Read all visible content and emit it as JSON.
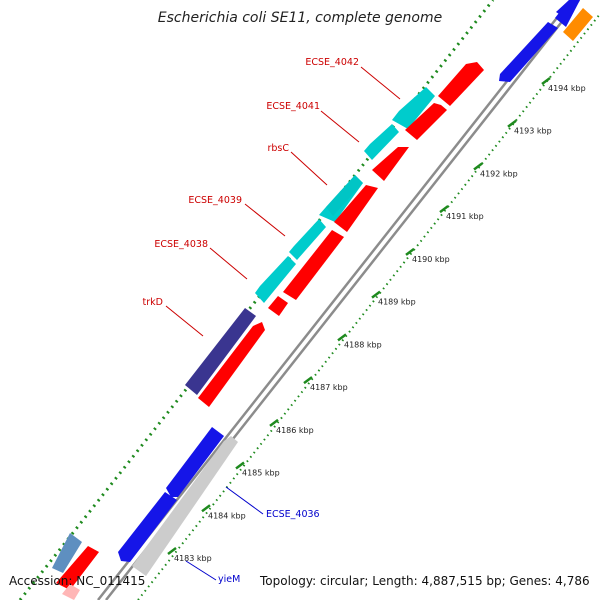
{
  "title": "Escherichia coli SE11, complete genome",
  "footer": {
    "accession": "Accession: NC_011415",
    "summary": "Topology: circular; Length: 4,887,515 bp; Genes: 4,786"
  },
  "colors": {
    "backbone": "#8c8c8c",
    "tick": "#1e8a1e",
    "label_red": "#cc0000",
    "label_blue": "#0000cc",
    "forward_cds": "#00cccc",
    "reverse_cds": "#ff0000",
    "blue_gene": "#1515e8",
    "purple_gene": "#3a3590",
    "gray_gene": "#cccccc",
    "orange_gene": "#ff8c00",
    "steelblue_gene": "#5e8fc0"
  },
  "scale": {
    "ticks": [
      {
        "kbp": 4183,
        "label": "4183 kbp"
      },
      {
        "kbp": 4184,
        "label": "4184 kbp"
      },
      {
        "kbp": 4185,
        "label": "4185 kbp"
      },
      {
        "kbp": 4186,
        "label": "4186 kbp"
      },
      {
        "kbp": 4187,
        "label": "4187 kbp"
      },
      {
        "kbp": 4188,
        "label": "4188 kbp"
      },
      {
        "kbp": 4189,
        "label": "4189 kbp"
      },
      {
        "kbp": 4190,
        "label": "4190 kbp"
      },
      {
        "kbp": 4191,
        "label": "4191 kbp"
      },
      {
        "kbp": 4192,
        "label": "4192 kbp"
      },
      {
        "kbp": 4193,
        "label": "4193 kbp"
      },
      {
        "kbp": 4194,
        "label": "4194 kbp"
      }
    ]
  },
  "gene_labels": [
    {
      "name": "ECSE_4042",
      "color": "label_red"
    },
    {
      "name": "ECSE_4041",
      "color": "label_red"
    },
    {
      "name": "rbsC",
      "color": "label_red"
    },
    {
      "name": "ECSE_4039",
      "color": "label_red"
    },
    {
      "name": "ECSE_4038",
      "color": "label_red"
    },
    {
      "name": "trkD",
      "color": "label_red"
    },
    {
      "name": "ECSE_4036",
      "color": "label_blue"
    },
    {
      "name": "yieM",
      "color": "label_blue"
    }
  ]
}
